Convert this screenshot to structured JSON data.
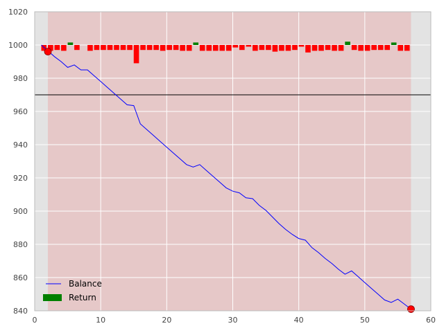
{
  "chart_data": {
    "type": "line",
    "title": "",
    "xlabel": "",
    "ylabel": "",
    "xlim": [
      0,
      60
    ],
    "ylim": [
      840,
      1020
    ],
    "xticks": [
      "0",
      "10",
      "20",
      "30",
      "40",
      "50",
      "60"
    ],
    "yticks": [
      "840",
      "860",
      "880",
      "900",
      "920",
      "940",
      "960",
      "980",
      "1000",
      "1020"
    ],
    "grid": true,
    "legend": {
      "position": "lower-left",
      "entries": [
        {
          "label": "Balance",
          "type": "line",
          "color": "#0000ff"
        },
        {
          "label": "Return",
          "type": "bar",
          "color": "#008000"
        }
      ]
    },
    "shaded_region": {
      "x_start": 2,
      "x_end": 57,
      "color": "#e6c8c8",
      "outside_color": "#e3e3e3"
    },
    "reference_line": {
      "y": 970,
      "color": "#000000"
    },
    "series": [
      {
        "name": "Balance",
        "kind": "line",
        "color": "#0000ff",
        "x": [
          1,
          2,
          3,
          4,
          5,
          6,
          7,
          8,
          9,
          10,
          11,
          12,
          13,
          14,
          15,
          16,
          17,
          18,
          19,
          20,
          21,
          22,
          23,
          24,
          25,
          26,
          27,
          28,
          29,
          30,
          31,
          32,
          33,
          34,
          35,
          36,
          37,
          38,
          39,
          40,
          41,
          42,
          43,
          44,
          45,
          46,
          47,
          48,
          49,
          50,
          51,
          52,
          53,
          54,
          55,
          56,
          57
        ],
        "y": [
          1000,
          996.5,
          993,
          990,
          986.5,
          988,
          985,
          985,
          981.5,
          978,
          974.5,
          971,
          967.5,
          964,
          963.5,
          952.5,
          949,
          945.5,
          942,
          938.5,
          935,
          931.5,
          928,
          926.5,
          928,
          924.5,
          921,
          917.5,
          914,
          912,
          911,
          908,
          907.5,
          903.5,
          900.5,
          896.5,
          892.5,
          889,
          886,
          883.5,
          882.5,
          878,
          875,
          871.5,
          868.5,
          865,
          862,
          864,
          860.5,
          857,
          853.5,
          850,
          846.5,
          845,
          847,
          844,
          841
        ]
      },
      {
        "name": "Return",
        "kind": "bar",
        "positive_color": "#008000",
        "negative_color": "#ff0000",
        "x": [
          1.4,
          2.4,
          3.4,
          4.4,
          5.4,
          6.4,
          7.4,
          8.4,
          9.4,
          10.4,
          11.4,
          12.4,
          13.4,
          14.4,
          15.4,
          16.4,
          17.4,
          18.4,
          19.4,
          20.4,
          21.4,
          22.4,
          23.4,
          24.4,
          25.4,
          26.4,
          27.4,
          28.4,
          29.4,
          30.4,
          31.4,
          32.4,
          33.4,
          34.4,
          35.4,
          36.4,
          37.4,
          38.4,
          39.4,
          40.4,
          41.4,
          42.4,
          43.4,
          44.4,
          45.4,
          46.4,
          47.4,
          48.4,
          49.4,
          50.4,
          51.4,
          52.4,
          53.4,
          54.4,
          55.4,
          56.4
        ],
        "values": [
          -3.5,
          -3.5,
          -3,
          -3.5,
          1.5,
          -3,
          0,
          -3.5,
          -3,
          -3,
          -3,
          -3,
          -3,
          -3,
          -11,
          -3,
          -3,
          -3,
          -3.5,
          -3,
          -3,
          -3.5,
          -3.5,
          1.5,
          -3.5,
          -3.5,
          -3.5,
          -3.5,
          -3.5,
          -1.5,
          -3,
          -1,
          -3.5,
          -3,
          -3,
          -4,
          -3.5,
          -3.5,
          -3,
          -1,
          -4.5,
          -3.5,
          -3.5,
          -3,
          -3.5,
          -3.5,
          2,
          -3,
          -3.5,
          -3.5,
          -3,
          -3,
          -3,
          1.5,
          -3.5,
          -3.5
        ]
      },
      {
        "kind": "markers",
        "color": "#ff0000",
        "x": [
          2,
          57
        ],
        "y": [
          996,
          841
        ]
      }
    ]
  }
}
